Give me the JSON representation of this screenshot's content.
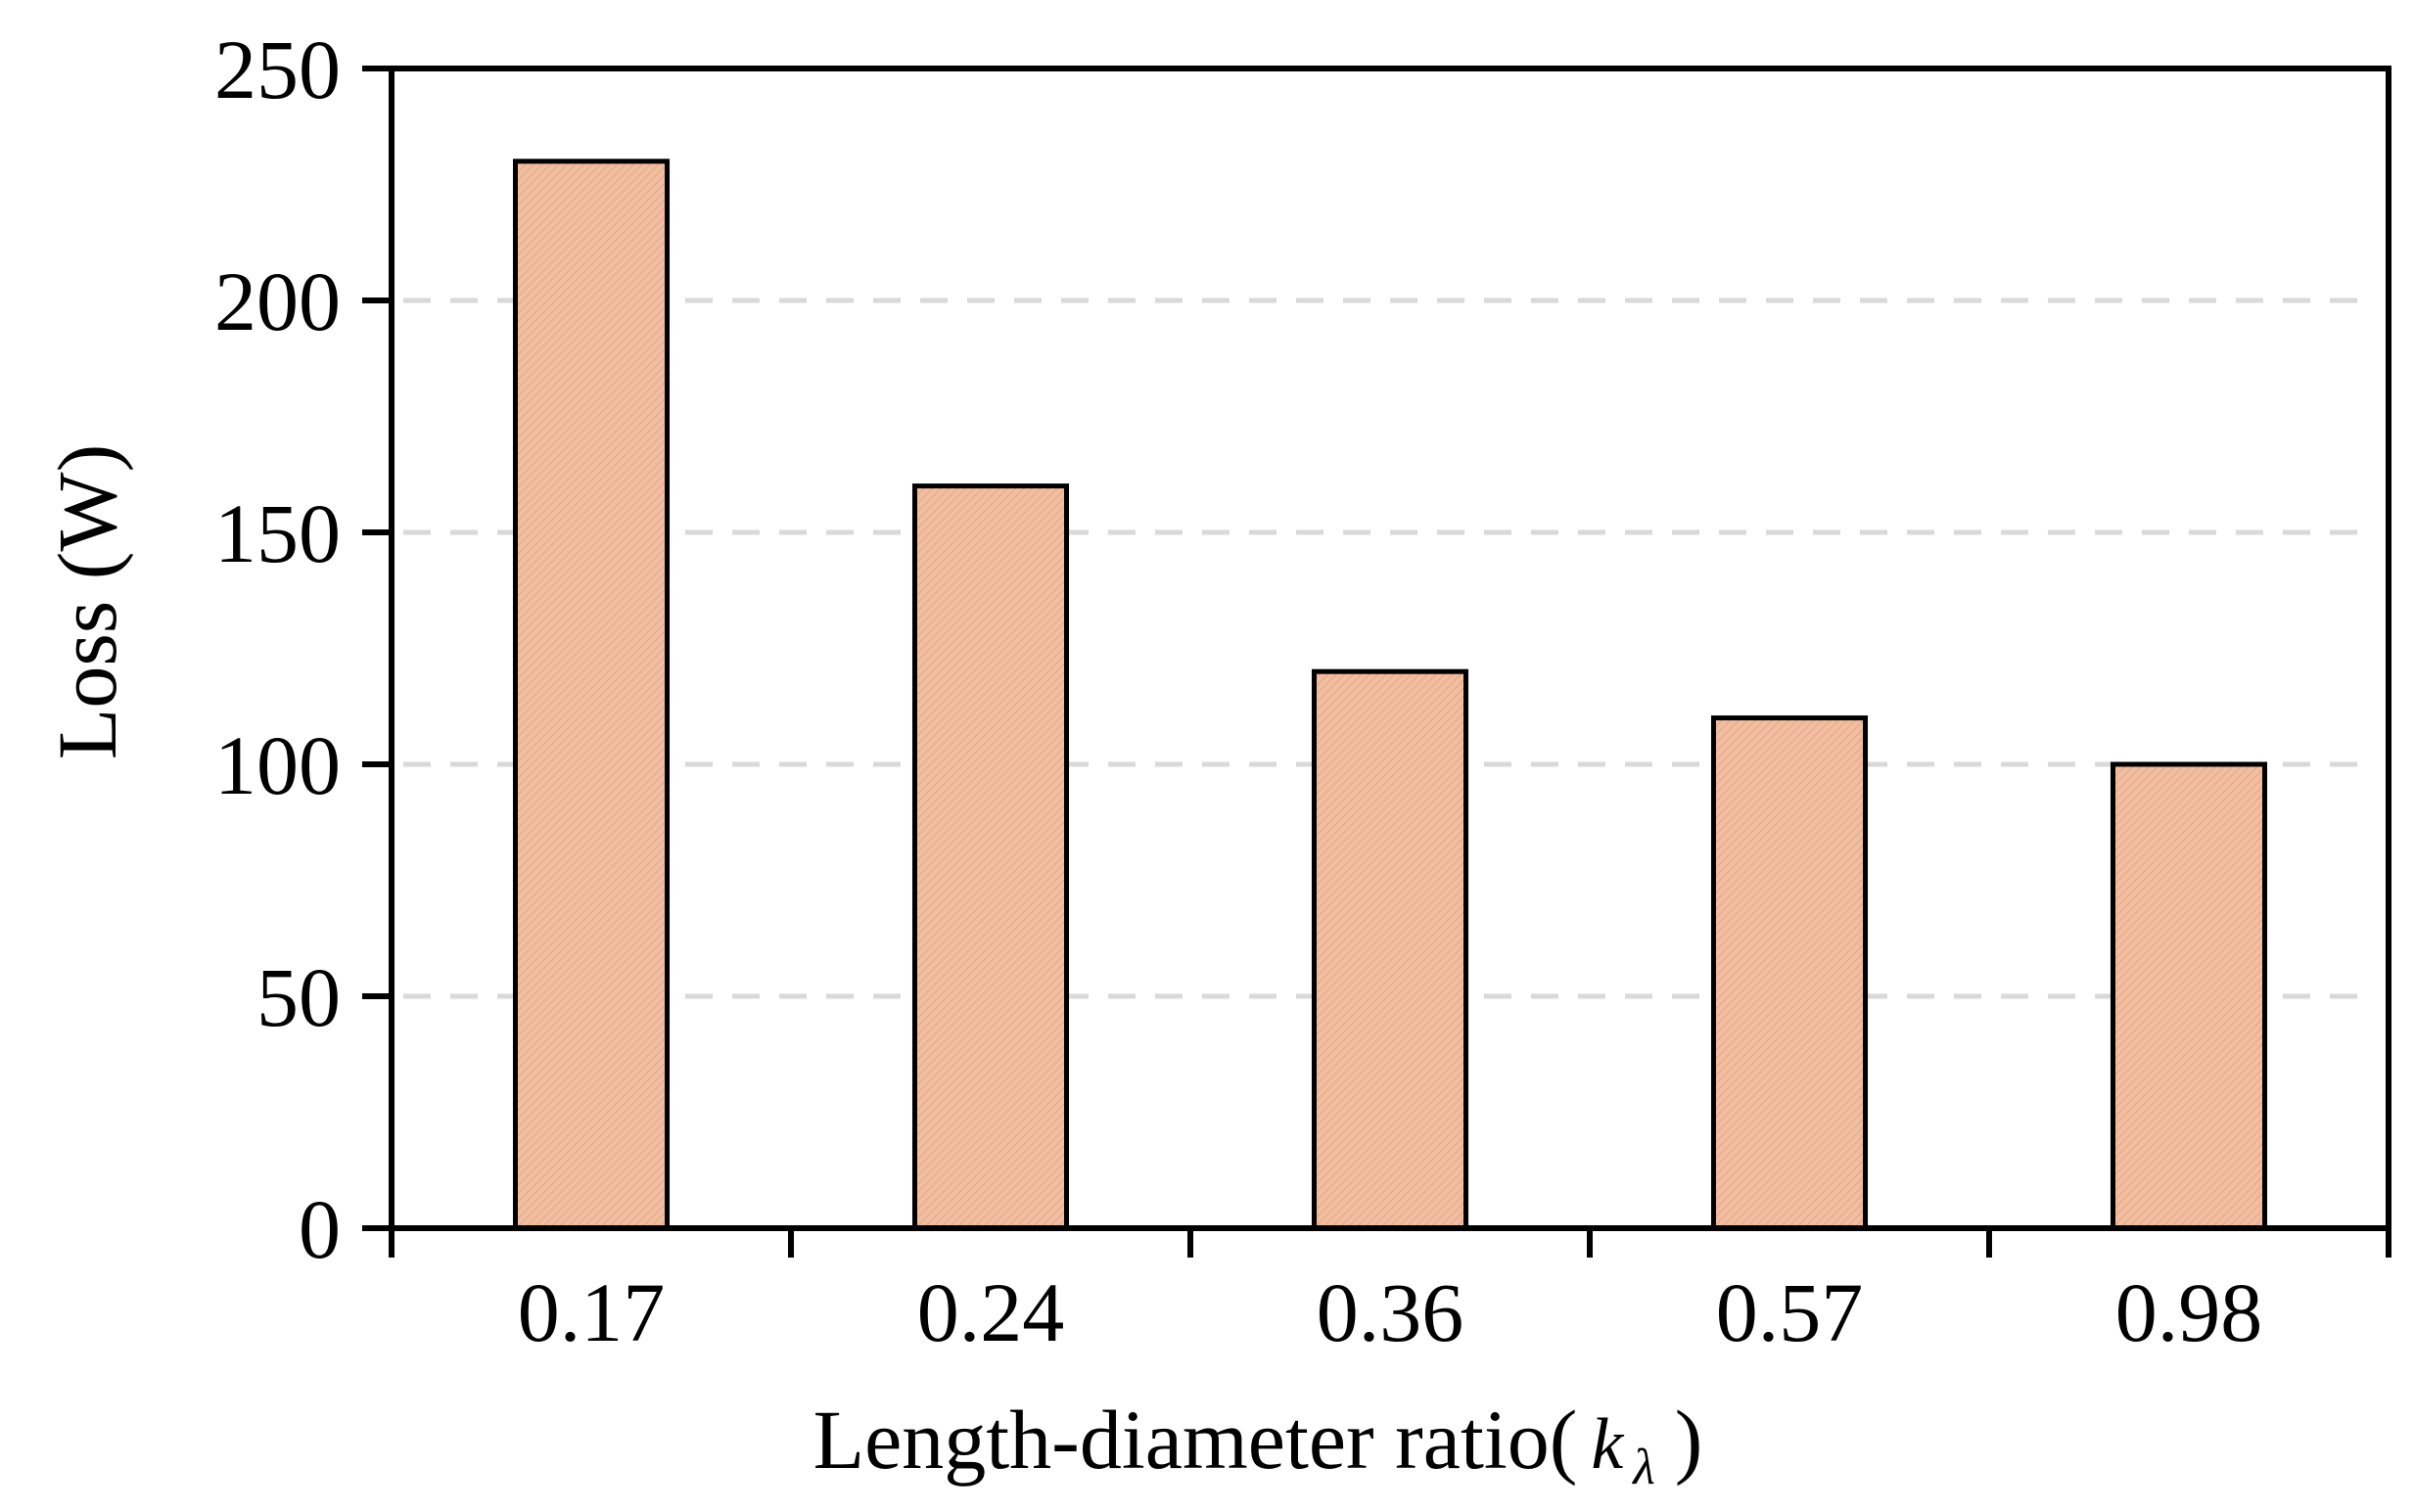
{
  "chart_data": {
    "type": "bar",
    "categories": [
      "0.17",
      "0.24",
      "0.36",
      "0.57",
      "0.98"
    ],
    "values": [
      230,
      160,
      120,
      110,
      100
    ],
    "ylabel": "Loss (W)",
    "xlabel": "Length-diameter ratio",
    "xlabel_symbol": "k",
    "xlabel_subscript": "λ",
    "yticks": [
      0,
      50,
      100,
      150,
      200,
      250
    ],
    "ylim": [
      0,
      250
    ],
    "grid": "horizontal-dashed",
    "bar_color": "#F2BEA0",
    "bar_edge_color": "#000000",
    "grid_color": "#D9D9D9"
  }
}
